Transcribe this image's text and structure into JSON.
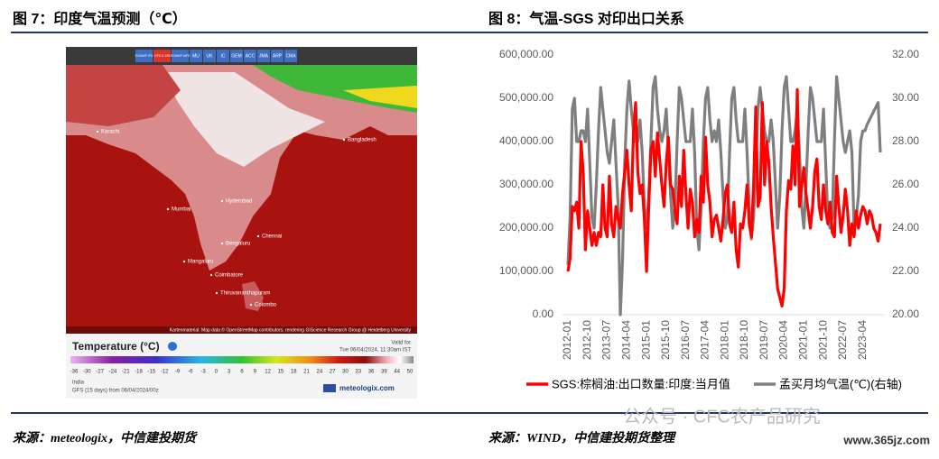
{
  "left_figure": {
    "title": "图 7：印度气温预测（℃）",
    "source": "来源：meteologix，中信建投期货",
    "map": {
      "toolbar": [
        "ECMWF IFS",
        "GFS 0.125",
        "ECMWF AIFS",
        "MU",
        "UK",
        "IC",
        "GEM",
        "ACC",
        "JMA",
        "ARP",
        "CMA"
      ],
      "cities": [
        "Karachi",
        "Mumbai",
        "Hyderabad",
        "Bengaluru",
        "Chennai",
        "Mangaluru",
        "Coimbatore",
        "Thiruvananthapuram",
        "Colombo",
        "Bangladesh"
      ],
      "attribution": "Kartenmaterial: Map data © OpenStreetMap contributors, rendering GIScience Research Group @ Heidelberg University",
      "legend_title": "Temperature (°C)",
      "valid_label": "Valid for",
      "valid_time": "Tue 06/04/2024, 11:30am IST",
      "scale_labels": [
        "-36",
        "-30",
        "-27",
        "-24",
        "-21",
        "-18",
        "-15",
        "-12",
        "-9",
        "-6",
        "-3",
        "0",
        "3",
        "6",
        "9",
        "12",
        "15",
        "18",
        "21",
        "24",
        "27",
        "30",
        "33",
        "36",
        "39",
        "44",
        "50"
      ],
      "region": "India",
      "model_run": "GFS (15 days) from 06/04/2024/00z",
      "brand": "meteologix.com"
    }
  },
  "chart_data": {
    "type": "line",
    "title": "图 8：气温-SGS 对印出口关系",
    "categories": [
      "2012-01",
      null,
      null,
      null,
      null,
      null,
      null,
      null,
      null,
      "2012-10",
      null,
      null,
      null,
      null,
      null,
      null,
      null,
      null,
      "2013-07",
      null,
      null,
      null,
      null,
      null,
      null,
      null,
      null,
      "2014-04",
      null,
      null,
      null,
      null,
      null,
      null,
      null,
      null,
      "2015-01",
      null,
      null,
      null,
      null,
      null,
      null,
      null,
      null,
      "2015-10",
      null,
      null,
      null,
      null,
      null,
      null,
      null,
      null,
      "2016-07",
      null,
      null,
      null,
      null,
      null,
      null,
      null,
      null,
      "2017-04",
      null,
      null,
      null,
      null,
      null,
      null,
      null,
      null,
      "2018-01",
      null,
      null,
      null,
      null,
      null,
      null,
      null,
      null,
      "2018-10",
      null,
      null,
      null,
      null,
      null,
      null,
      null,
      null,
      "2019-07",
      null,
      null,
      null,
      null,
      null,
      null,
      null,
      null,
      "2020-04",
      null,
      null,
      null,
      null,
      null,
      null,
      null,
      null,
      "2021-01",
      null,
      null,
      null,
      null,
      null,
      null,
      null,
      null,
      "2021-10",
      null,
      null,
      null,
      null,
      null,
      null,
      null,
      null,
      "2022-07",
      null,
      null,
      null,
      null,
      null,
      null,
      null,
      null,
      "2023-04",
      null,
      null,
      null,
      null,
      null,
      null,
      null,
      null
    ],
    "series": [
      {
        "name": "SGS:棕榈油:出口数量:印度:当月值",
        "color": "#ff0000",
        "values": [
          100000,
          130000,
          250000,
          240000,
          260000,
          200000,
          400000,
          330000,
          150000,
          240000,
          200000,
          160000,
          190000,
          160000,
          190000,
          180000,
          300000,
          200000,
          180000,
          320000,
          210000,
          180000,
          250000,
          220000,
          200000,
          280000,
          330000,
          380000,
          300000,
          240000,
          420000,
          490000,
          330000,
          280000,
          300000,
          220000,
          100000,
          250000,
          380000,
          400000,
          320000,
          420000,
          360000,
          300000,
          250000,
          350000,
          410000,
          300000,
          290000,
          240000,
          210000,
          320000,
          250000,
          380000,
          280000,
          200000,
          290000,
          260000,
          180000,
          220000,
          190000,
          320000,
          260000,
          410000,
          300000,
          260000,
          180000,
          220000,
          230000,
          200000,
          170000,
          220000,
          280000,
          300000,
          210000,
          190000,
          260000,
          150000,
          110000,
          210000,
          200000,
          240000,
          300000,
          210000,
          180000,
          300000,
          480000,
          250000,
          270000,
          490000,
          300000,
          400000,
          350000,
          250000,
          180000,
          120000,
          60000,
          40000,
          20000,
          60000,
          240000,
          310000,
          290000,
          390000,
          300000,
          520000,
          250000,
          300000,
          340000,
          280000,
          240000,
          200000,
          250000,
          330000,
          360000,
          250000,
          220000,
          300000,
          240000,
          210000,
          260000,
          190000,
          180000,
          320000,
          250000,
          190000,
          230000,
          290000,
          240000,
          160000,
          210000,
          180000,
          240000,
          200000,
          230000,
          250000,
          240000,
          210000,
          240000,
          230000,
          200000,
          190000,
          170000,
          210000
        ]
      },
      {
        "name": "孟买月均气温(℃)(右轴)",
        "color": "#7f7f7f",
        "axis": "y2",
        "values": [
          22.3,
          24.5,
          29.5,
          30.0,
          28.0,
          28.0,
          28.5,
          28.5,
          28.0,
          29.5,
          27.0,
          24.5,
          24.0,
          26.0,
          28.5,
          30.5,
          29.5,
          28.5,
          27.5,
          27.0,
          28.0,
          29.0,
          27.0,
          25.0,
          20.0,
          22.5,
          27.0,
          29.5,
          30.8,
          29.5,
          28.5,
          28.0,
          28.0,
          29.0,
          27.5,
          25.0,
          24.0,
          25.5,
          28.0,
          30.5,
          31.0,
          29.5,
          28.5,
          28.0,
          28.5,
          29.5,
          27.5,
          25.5,
          24.0,
          25.0,
          28.0,
          30.5,
          30.0,
          29.0,
          28.0,
          28.0,
          28.0,
          29.5,
          27.5,
          24.0,
          23.0,
          25.0,
          28.0,
          30.0,
          30.5,
          29.0,
          28.0,
          28.5,
          28.0,
          29.0,
          27.5,
          25.5,
          24.0,
          24.5,
          27.5,
          30.0,
          30.5,
          29.0,
          28.0,
          28.0,
          28.0,
          29.5,
          27.5,
          25.0,
          23.5,
          24.5,
          27.0,
          29.5,
          30.5,
          29.5,
          28.5,
          28.0,
          28.0,
          29.0,
          28.0,
          26.0,
          24.0,
          25.5,
          28.5,
          30.5,
          31.0,
          29.5,
          28.0,
          28.0,
          28.5,
          29.5,
          27.5,
          25.0,
          24.0,
          26.0,
          28.5,
          30.5,
          30.0,
          29.0,
          28.0,
          28.0,
          28.0,
          29.5,
          27.0,
          24.5,
          24.0,
          24.5,
          28.0,
          31.0,
          30.0,
          29.0,
          28.0,
          27.5,
          28.0,
          28.5,
          27.5,
          24.0,
          24.5,
          25.5,
          28.0,
          28.5,
          28.5,
          28.8,
          29.0,
          29.2,
          29.4,
          29.6,
          29.8,
          27.5
        ]
      }
    ],
    "ylim": [
      0,
      600000
    ],
    "yticks": [
      {
        "value": 0,
        "label": "0.00"
      },
      {
        "value": 100000,
        "label": "100,000.00"
      },
      {
        "value": 200000,
        "label": "200,000.00"
      },
      {
        "value": 300000,
        "label": "300,000.00"
      },
      {
        "value": 400000,
        "label": "400,000.00"
      },
      {
        "value": 500000,
        "label": "500,000.00"
      },
      {
        "value": 600000,
        "label": "600,000.00"
      }
    ],
    "y2lim": [
      20,
      32
    ],
    "y2ticks": [
      {
        "value": 20,
        "label": "20.00"
      },
      {
        "value": 22,
        "label": "22.00"
      },
      {
        "value": 24,
        "label": "24.00"
      },
      {
        "value": 26,
        "label": "26.00"
      },
      {
        "value": 28,
        "label": "28.00"
      },
      {
        "value": 30,
        "label": "30.00"
      },
      {
        "value": 32,
        "label": "32.00"
      }
    ],
    "grid": false,
    "legend": "bottom"
  },
  "right_source": "来源：WIND，中信建投期货整理",
  "watermark": "公众号 · CFC农产品研究",
  "site": "www.365jz.com"
}
